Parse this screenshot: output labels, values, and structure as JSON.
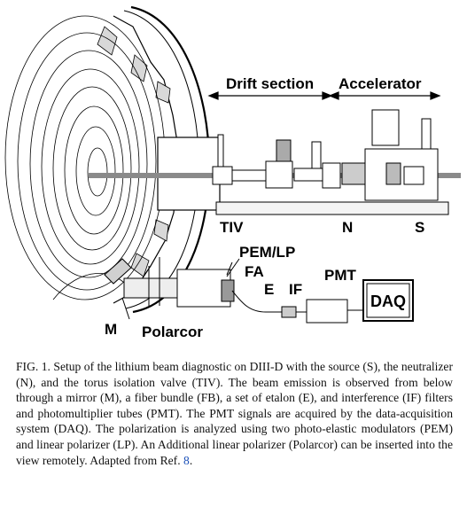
{
  "figure": {
    "labels": {
      "drift_section": "Drift section",
      "accelerator": "Accelerator",
      "tiv": "TIV",
      "n": "N",
      "s": "S",
      "pem_lp": "PEM/LP",
      "fa": "FA",
      "e": "E",
      "if": "IF",
      "pmt": "PMT",
      "daq": "DAQ",
      "m": "M",
      "polarcor": "Polarcor"
    }
  },
  "caption": {
    "text": "FIG. 1.  Setup of the lithium beam diagnostic on DIII-D with the source (S), the neutralizer (N), and the torus isolation valve (TIV). The beam emission is observed from below through a mirror (M), a fiber bundle (FB), a set of etalon (E), and interference (IF) filters and photomultiplier tubes (PMT). The PMT signals are acquired by the data-acquisition system (DAQ). The polarization is analyzed using two photo-elastic modulators (PEM) and linear polarizer (LP). An Additional linear polarizer (Polarcor) can be inserted into the view remotely. Adapted from Ref.",
    "ref_link": "8",
    "end": "."
  }
}
